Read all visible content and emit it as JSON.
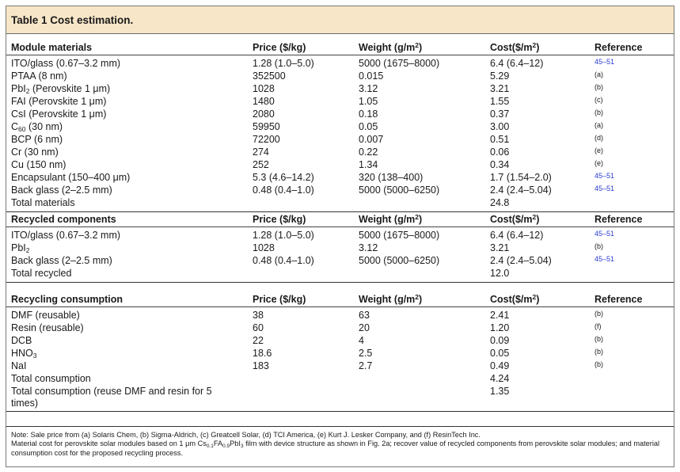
{
  "table_title": "Table 1 Cost estimation.",
  "units_sup_2": "2",
  "sections": [
    {
      "header": {
        "item": "Module materials",
        "price": "Price ($/kg)",
        "weight_pre": "Weight (g/m",
        "weight_post": ")",
        "cost_pre": "Cost($/m",
        "cost_post": ")",
        "reference": "Reference"
      },
      "rows": [
        {
          "item": "ITO/glass (0.67–3.2 mm)",
          "price": "1.28 (1.0–5.0)",
          "weight": "5000 (1675–8000)",
          "cost": "6.4 (6.4–12)",
          "ref": "45–51"
        },
        {
          "item": "PTAA (8 nm)",
          "price": "352500",
          "weight": "0.015",
          "cost": "5.29",
          "ref": "(a)"
        },
        {
          "item_pre": "PbI",
          "item_sub": "2",
          "item_post": " (Perovskite 1 μm)",
          "price": "1028",
          "weight": "3.12",
          "cost": "3.21",
          "ref": "(b)"
        },
        {
          "item": "FAI (Perovskite 1 μm)",
          "price": "1480",
          "weight": "1.05",
          "cost": "1.55",
          "ref": "(c)"
        },
        {
          "item": "CsI (Perovskite 1 μm)",
          "price": "2080",
          "weight": "0.18",
          "cost": "0.37",
          "ref": "(b)"
        },
        {
          "item_pre": "C",
          "item_sub": "60",
          "item_post": " (30 nm)",
          "price": "59950",
          "weight": "0.05",
          "cost": "3.00",
          "ref": "(a)"
        },
        {
          "item": "BCP (6 nm)",
          "price": "72200",
          "weight": "0.007",
          "cost": "0.51",
          "ref": "(d)"
        },
        {
          "item": "Cr (30 nm)",
          "price": "274",
          "weight": "0.22",
          "cost": "0.06",
          "ref": "(e)"
        },
        {
          "item": "Cu (150 nm)",
          "price": "252",
          "weight": "1.34",
          "cost": "0.34",
          "ref": "(e)"
        },
        {
          "item": "Encapsulant (150–400 μm)",
          "price": "5.3 (4.6–14.2)",
          "weight": "320 (138–400)",
          "cost": "1.7 (1.54–2.0)",
          "ref": "45–51"
        },
        {
          "item": "Back glass (2–2.5 mm)",
          "price": "0.48 (0.4–1.0)",
          "weight": "5000 (5000–6250)",
          "cost": "2.4 (2.4–5.04)",
          "ref": "45–51"
        },
        {
          "item": "Total materials",
          "price": "",
          "weight": "",
          "cost": "24.8",
          "ref": ""
        }
      ]
    },
    {
      "header": {
        "item": "Recycled components",
        "price": "Price ($/kg)",
        "weight_pre": "Weight (g/m",
        "weight_post": ")",
        "cost_pre": "Cost($/m",
        "cost_post": ")",
        "reference": "Reference"
      },
      "rows": [
        {
          "item": "ITO/glass (0.67–3.2 mm)",
          "price": "1.28 (1.0–5.0)",
          "weight": "5000 (1675–8000)",
          "cost": "6.4 (6.4–12)",
          "ref": "45–51"
        },
        {
          "item_pre": "PbI",
          "item_sub": "2",
          "item_post": "",
          "price": "1028",
          "weight": "3.12",
          "cost": "3.21",
          "ref": "(b)"
        },
        {
          "item": "Back glass (2–2.5 mm)",
          "price": "0.48 (0.4–1.0)",
          "weight": "5000 (5000–6250)",
          "cost": "2.4 (2.4–5.04)",
          "ref": "45–51"
        },
        {
          "item": "Total recycled",
          "price": "",
          "weight": "",
          "cost": "12.0",
          "ref": ""
        }
      ]
    },
    {
      "header": {
        "item": "Recycling consumption",
        "price": "Price ($/kg)",
        "weight_pre": "Weight (g/m",
        "weight_post": ")",
        "cost_pre": "Cost($/m",
        "cost_post": ")",
        "reference": "Reference"
      },
      "rows": [
        {
          "item": "DMF (reusable)",
          "price": "38",
          "weight": "63",
          "cost": "2.41",
          "ref": "(b)"
        },
        {
          "item": "Resin (reusable)",
          "price": "60",
          "weight": "20",
          "cost": "1.20",
          "ref": "(f)"
        },
        {
          "item": "DCB",
          "price": "22",
          "weight": "4",
          "cost": "0.09",
          "ref": "(b)"
        },
        {
          "item_pre": "HNO",
          "item_sub": "3",
          "item_post": "",
          "price": "18.6",
          "weight": "2.5",
          "cost": "0.05",
          "ref": "(b)"
        },
        {
          "item": "NaI",
          "price": "183",
          "weight": "2.7",
          "cost": "0.49",
          "ref": "(b)"
        },
        {
          "item": "Total consumption",
          "price": "",
          "weight": "",
          "cost": "4.24",
          "ref": ""
        },
        {
          "item": "Total consumption (reuse DMF and resin for 5 times)",
          "price": "",
          "weight": "",
          "cost": "1.35",
          "ref": ""
        }
      ]
    }
  ],
  "note": {
    "line1": "Note: Sale price from (a) Solaris Chem, (b) Sigma-Aldrich, (c) Greatcell Solar, (d) TCI America, (e) Kurt J. Lesker Company, and (f) ResinTech Inc.",
    "line2_pre": "Material cost for perovskite solar modules based on 1 μm Cs",
    "sub1": "0.1",
    "mid1": "FA",
    "sub2": "0.9",
    "mid2": "PbI",
    "sub3": "3",
    "line2_post": " film with device structure as shown in Fig. 2a; recover value of recycled components from perovskite solar modules; and material consumption cost for the proposed recycling process."
  },
  "colors": {
    "title_background": "#f8e6c8",
    "reference_link": "#2a3bd6"
  }
}
